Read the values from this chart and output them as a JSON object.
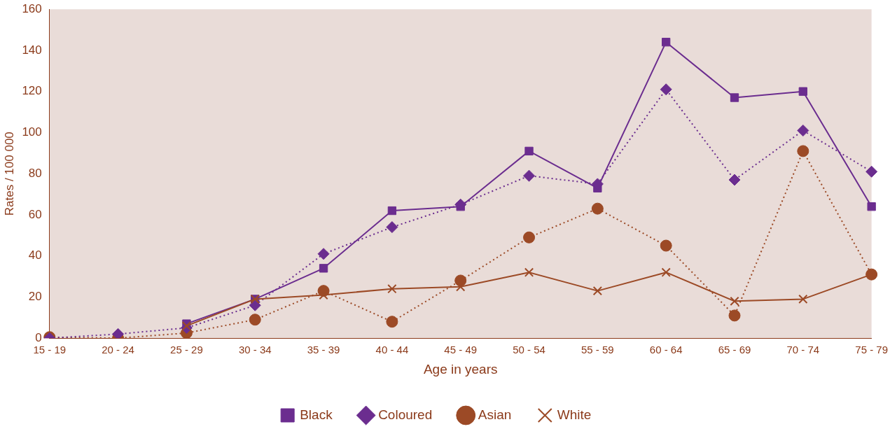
{
  "chart_data": {
    "type": "line",
    "xlabel": "Age in years",
    "ylabel": "Rates / 100 000",
    "categories": [
      "15 - 19",
      "20 - 24",
      "25 - 29",
      "30 - 34",
      "35 - 39",
      "40 - 44",
      "45 - 49",
      "50 - 54",
      "55 - 59",
      "60 - 64",
      "65 - 69",
      "70 - 74",
      "75 - 79"
    ],
    "series": [
      {
        "name": "Black",
        "color": "#6b2d8f",
        "marker": "square",
        "line_style": "solid",
        "values": [
          null,
          null,
          7,
          19,
          34,
          62,
          64,
          91,
          73,
          144,
          117,
          120,
          64
        ]
      },
      {
        "name": "Coloured",
        "color": "#6b2d8f",
        "marker": "diamond",
        "line_style": "dotted",
        "values": [
          0,
          2,
          5,
          16,
          41,
          54,
          65,
          79,
          75,
          121,
          77,
          101,
          81
        ]
      },
      {
        "name": "Asian",
        "color": "#9c4a26",
        "marker": "circle",
        "line_style": "dotted",
        "values": [
          0.5,
          0,
          2.5,
          9,
          23,
          8,
          28,
          49,
          63,
          45,
          11,
          91,
          31
        ]
      },
      {
        "name": "White",
        "color": "#9c4a26",
        "marker": "cross",
        "line_style": "solid",
        "values": [
          null,
          null,
          6,
          19,
          21,
          24,
          25,
          32,
          23,
          32,
          18,
          19,
          31
        ]
      }
    ],
    "ylim": [
      0,
      160
    ],
    "yticks": [
      0,
      20,
      40,
      60,
      80,
      100,
      120,
      140,
      160
    ],
    "grid": false,
    "legend": "bottom"
  }
}
